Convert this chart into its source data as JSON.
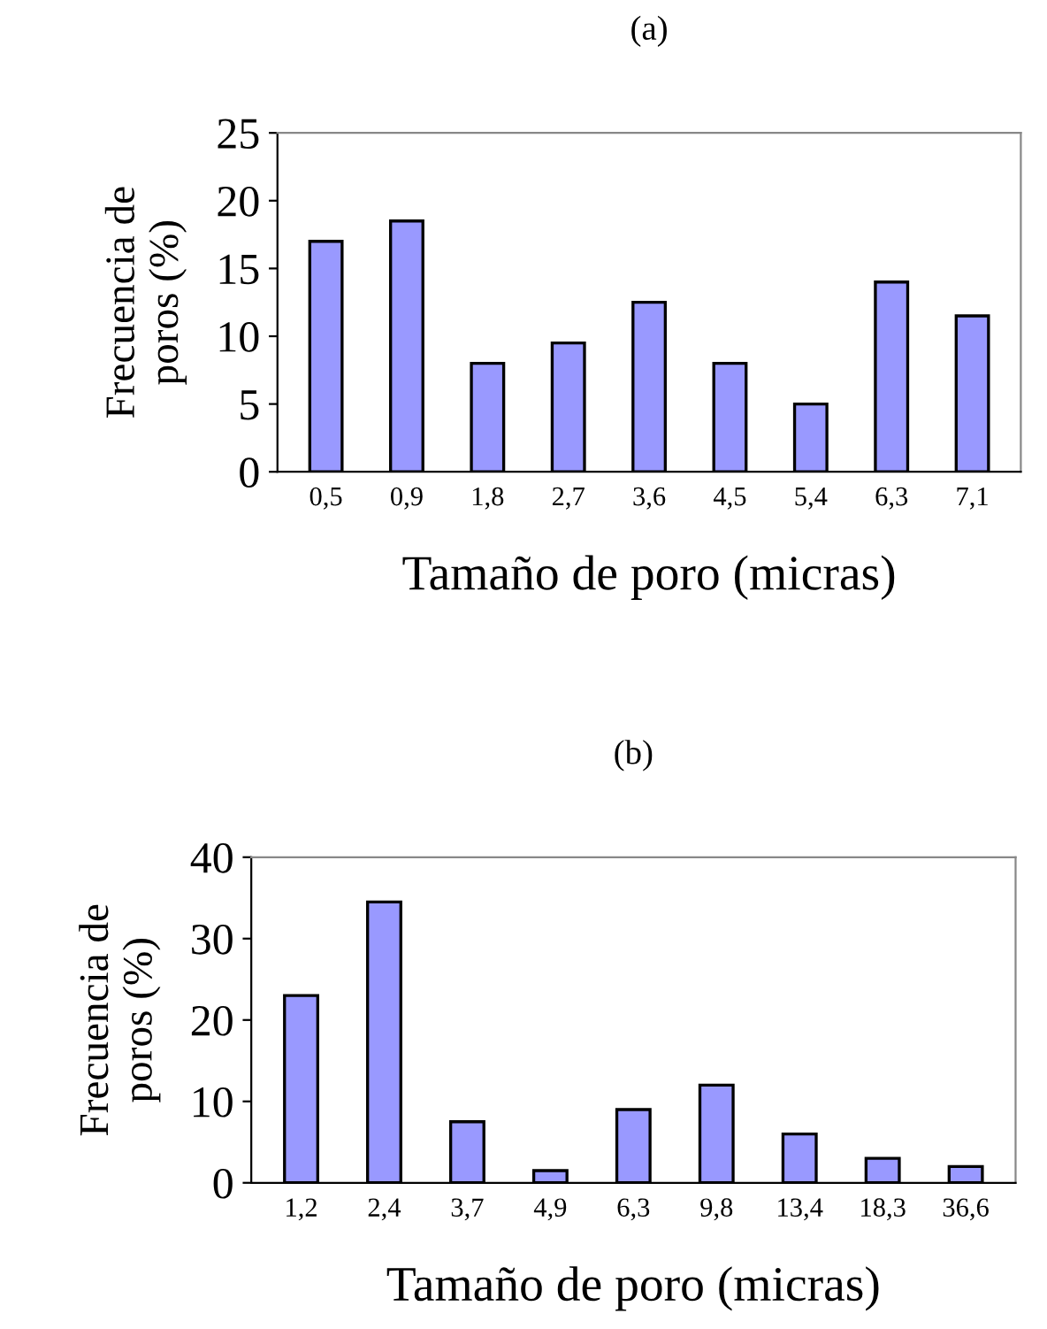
{
  "chart_data": [
    {
      "type": "bar",
      "title": "(a)",
      "xlabel": "Tamaño de poro (micras)",
      "ylabel": "Frecuencia de\nporos (%)",
      "categories": [
        "0,5",
        "0,9",
        "1,8",
        "2,7",
        "3,6",
        "4,5",
        "5,4",
        "6,3",
        "7,1"
      ],
      "series": [
        {
          "color": "#9999ff",
          "values": [
            17,
            18.5,
            8,
            9.5,
            12.5,
            8,
            5,
            14,
            11.5
          ]
        }
      ],
      "ylim": [
        0,
        25
      ],
      "yticks": [
        0,
        5,
        10,
        15,
        20,
        25
      ],
      "grid": false,
      "legend": false
    },
    {
      "type": "bar",
      "title": "(b)",
      "xlabel": "Tamaño de poro (micras)",
      "ylabel": "Frecuencia de\nporos (%)",
      "categories": [
        "1,2",
        "2,4",
        "3,7",
        "4,9",
        "6,3",
        "9,8",
        "13,4",
        "18,3",
        "36,6"
      ],
      "series": [
        {
          "color": "#9999ff",
          "values": [
            23,
            34.5,
            7.5,
            1.5,
            9,
            12,
            6,
            3,
            2
          ]
        }
      ],
      "ylim": [
        0,
        40
      ],
      "yticks": [
        0,
        10,
        20,
        30,
        40
      ],
      "grid": false,
      "legend": false
    }
  ]
}
